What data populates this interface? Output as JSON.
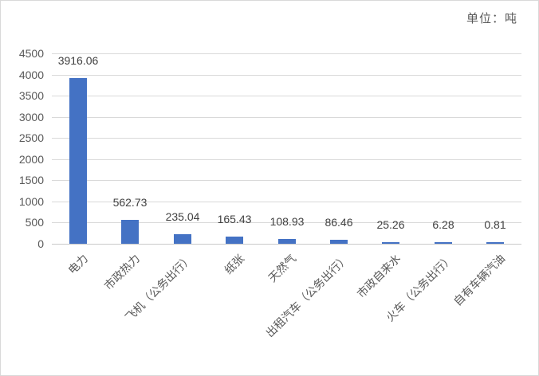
{
  "unit_label": "单位：吨",
  "chart_data": {
    "type": "bar",
    "title": "",
    "unit_label": "单位：吨",
    "categories": [
      "电力",
      "市政热力",
      "飞机（公务出行）",
      "纸张",
      "天然气",
      "出租汽车（公务出行）",
      "市政自来水",
      "火车（公务出行）",
      "自有车辆汽油"
    ],
    "values": [
      3916.06,
      562.73,
      235.04,
      165.43,
      108.93,
      86.46,
      25.26,
      6.28,
      0.81
    ],
    "data_labels": [
      "3916.06",
      "562.73",
      "235.04",
      "165.43",
      "108.93",
      "86.46",
      "25.26",
      "6.28",
      "0.81"
    ],
    "xlabel": "",
    "ylabel": "",
    "ylim": [
      0,
      4500
    ],
    "yticks": [
      0,
      500,
      1000,
      1500,
      2000,
      2500,
      3000,
      3500,
      4000,
      4500
    ],
    "grid": true,
    "legend": "none",
    "bar_color": "#4472C4",
    "gridline_color": "#D9D9D9",
    "axis_line_color": "#C9C9C9",
    "axis_text_color": "#595959",
    "data_label_color": "#404040",
    "category_label_rotation_deg": -45
  }
}
